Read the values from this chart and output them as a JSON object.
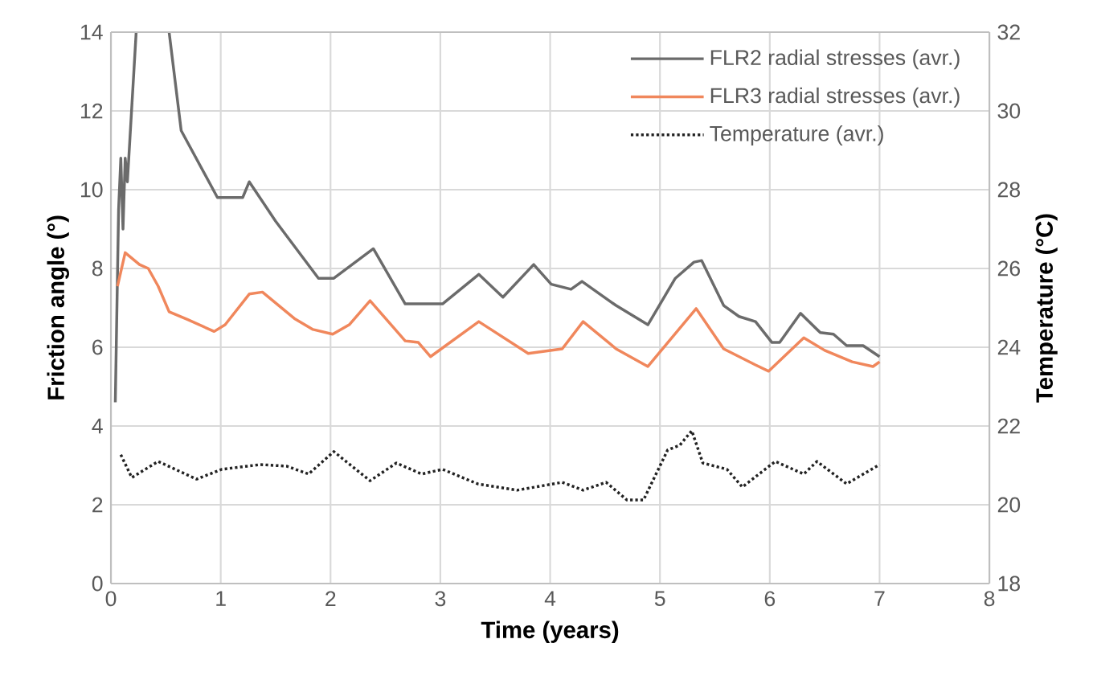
{
  "chart_data": {
    "type": "line",
    "xlabel": "Time (years)",
    "ylabel": "Friction angle (°)",
    "y2label": "Temperature (°C)",
    "xlim": [
      0,
      8
    ],
    "xticks": [
      0,
      1,
      2,
      3,
      4,
      5,
      6,
      7,
      8
    ],
    "ylim": [
      0,
      14
    ],
    "yticks": [
      0,
      2,
      4,
      6,
      8,
      10,
      12,
      14
    ],
    "y2lim": [
      18,
      32
    ],
    "y2ticks": [
      18,
      20,
      22,
      24,
      26,
      28,
      30,
      32
    ],
    "grid": true,
    "legend": "top right",
    "series": [
      {
        "name": "FLR2 radial stresses (avr.)",
        "color": "#6b6b6b",
        "line_style": "solid",
        "x": [
          0.04,
          0.07,
          0.09,
          0.11,
          0.13,
          0.15,
          0.23,
          0.38,
          0.53,
          0.64,
          0.97,
          1.2,
          1.26,
          1.5,
          1.89,
          2.03,
          2.39,
          2.68,
          3.02,
          3.35,
          3.57,
          3.85,
          4.01,
          4.19,
          4.29,
          4.6,
          4.89,
          5.14,
          5.31,
          5.38,
          5.58,
          5.72,
          5.87,
          6.02,
          6.09,
          6.28,
          6.46,
          6.58,
          6.7,
          6.85,
          7.0
        ],
        "values": [
          4.6,
          9.5,
          10.8,
          9.0,
          10.8,
          10.2,
          14,
          null,
          14,
          11.5,
          9.8,
          9.8,
          10.2,
          9.2,
          7.75,
          7.75,
          8.5,
          7.1,
          7.1,
          7.85,
          7.27,
          8.1,
          7.6,
          7.47,
          7.67,
          7.06,
          6.57,
          7.75,
          8.16,
          8.2,
          7.06,
          6.78,
          6.65,
          6.12,
          6.12,
          6.86,
          6.37,
          6.33,
          6.04,
          6.04,
          5.76
        ]
      },
      {
        "name": "FLR3 radial stresses (avr.)",
        "color": "#f0875c",
        "line_style": "solid",
        "x": [
          0.06,
          0.13,
          0.26,
          0.34,
          0.43,
          0.53,
          0.7,
          0.94,
          1.04,
          1.26,
          1.38,
          1.67,
          1.84,
          2.02,
          2.17,
          2.36,
          2.68,
          2.8,
          2.91,
          3.35,
          3.8,
          4.11,
          4.3,
          4.6,
          4.89,
          5.33,
          5.58,
          5.87,
          5.99,
          6.31,
          6.5,
          6.75,
          6.94,
          7.0
        ],
        "values": [
          7.55,
          8.4,
          8.1,
          8.0,
          7.55,
          6.9,
          6.7,
          6.4,
          6.57,
          7.35,
          7.4,
          6.73,
          6.45,
          6.33,
          6.57,
          7.18,
          6.16,
          6.12,
          5.76,
          6.65,
          5.84,
          5.96,
          6.65,
          5.96,
          5.51,
          6.98,
          5.96,
          5.55,
          5.39,
          6.24,
          5.92,
          5.63,
          5.51,
          5.63
        ]
      },
      {
        "name": "Temperature (avr.)",
        "color": "#222222",
        "line_style": "dotted",
        "axis": "y2",
        "x": [
          0.09,
          0.19,
          0.43,
          0.78,
          1.01,
          1.36,
          1.6,
          1.8,
          2.03,
          2.36,
          2.6,
          2.83,
          3.02,
          3.34,
          3.7,
          4.11,
          4.3,
          4.51,
          4.7,
          4.85,
          5.07,
          5.18,
          5.29,
          5.39,
          5.61,
          5.75,
          6.05,
          6.31,
          6.43,
          6.7,
          7.0
        ],
        "values": [
          21.27,
          20.69,
          21.1,
          20.65,
          20.9,
          21.02,
          20.98,
          20.78,
          21.35,
          20.61,
          21.06,
          20.78,
          20.9,
          20.53,
          20.37,
          20.57,
          20.37,
          20.57,
          20.12,
          20.12,
          21.39,
          21.51,
          21.88,
          21.06,
          20.9,
          20.45,
          21.1,
          20.78,
          21.1,
          20.53,
          21.02
        ]
      }
    ]
  }
}
